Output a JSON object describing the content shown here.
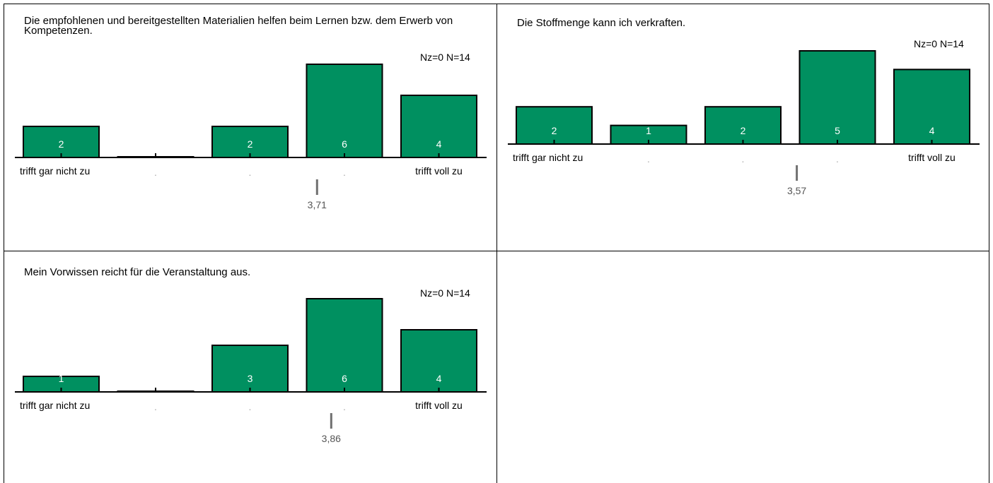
{
  "colors": {
    "bar": "#009060",
    "axis": "#000000",
    "mean": "#707070"
  },
  "charts": [
    {
      "question": "Die empfohlenen und bereitgestellten Materialien helfen beim Lernen bzw. dem Erwerb von Kompetenzen.",
      "stats": "Nz=0  N=14",
      "mean_label": "3,71",
      "left_label": "trifft gar nicht zu",
      "right_label": "trifft voll zu",
      "mid_labels": [
        ".",
        ".",
        "."
      ]
    },
    {
      "question": "Die Stoffmenge kann ich verkraften.",
      "stats": "Nz=0  N=14",
      "mean_label": "3,57",
      "left_label": "trifft gar nicht zu",
      "right_label": "trifft voll zu",
      "mid_labels": [
        ".",
        ".",
        "."
      ]
    },
    {
      "question": "Mein Vorwissen reicht für die Veranstaltung aus.",
      "stats": "Nz=0  N=14",
      "mean_label": "3,86",
      "left_label": "trifft gar nicht zu",
      "right_label": "trifft voll zu",
      "mid_labels": [
        ".",
        ".",
        "."
      ]
    }
  ],
  "chart_data": [
    {
      "type": "bar",
      "title": "Die empfohlenen und bereitgestellten Materialien helfen beim Lernen bzw. dem Erwerb von Kompetenzen.",
      "categories": [
        "1",
        "2",
        "3",
        "4",
        "5"
      ],
      "values": [
        2,
        0,
        2,
        6,
        4
      ],
      "mean": 3.71,
      "n": 14,
      "nz": 0
    },
    {
      "type": "bar",
      "title": "Die Stoffmenge kann ich verkraften.",
      "categories": [
        "1",
        "2",
        "3",
        "4",
        "5"
      ],
      "values": [
        2,
        1,
        2,
        5,
        4
      ],
      "mean": 3.57,
      "n": 14,
      "nz": 0
    },
    {
      "type": "bar",
      "title": "Mein Vorwissen reicht für die Veranstaltung aus.",
      "categories": [
        "1",
        "2",
        "3",
        "4",
        "5"
      ],
      "values": [
        1,
        0,
        3,
        6,
        4
      ],
      "mean": 3.86,
      "n": 14,
      "nz": 0
    }
  ]
}
